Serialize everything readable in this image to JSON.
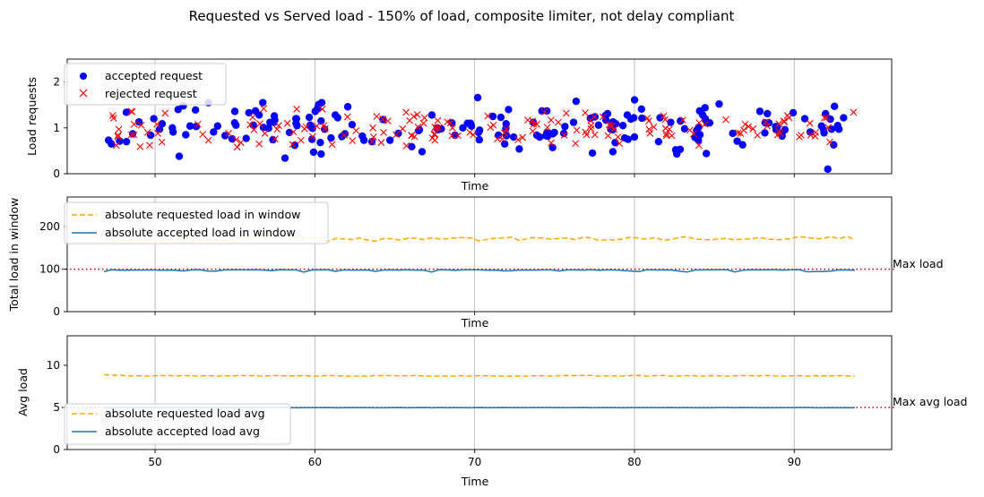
{
  "figure": {
    "title": "Requested vs Served load - 150% of load, composite limiter, not delay compliant"
  },
  "chart_data": [
    {
      "type": "scatter",
      "xlabel": "Time",
      "ylabel": "Load requests",
      "xlim": [
        44.5,
        96.1
      ],
      "ylim": [
        0,
        2.5
      ],
      "yticks": [
        "0",
        "1",
        "2"
      ],
      "xticks": [
        50,
        60,
        70,
        80,
        90
      ],
      "xticklabels_visible": false,
      "grid": "x",
      "legend": "upper-left",
      "series": [
        {
          "name": "accepted request",
          "marker": "circle",
          "color": "#0000ff",
          "points": [],
          "summary": {
            "x_range": [
              47.0,
              93.6
            ],
            "y_range": [
              0.1,
              1.78
            ]
          }
        },
        {
          "name": "rejected request",
          "marker": "x",
          "color": "#ff0000",
          "points": [],
          "summary": {
            "x_range": [
              47.0,
              93.9
            ],
            "y_range": [
              0.5,
              1.67
            ]
          }
        }
      ]
    },
    {
      "type": "line",
      "xlabel": "Time",
      "ylabel": "Total load in window",
      "xlim": [
        44.5,
        96.1
      ],
      "ylim": [
        0,
        270
      ],
      "yticks": [
        "0",
        "100",
        "200"
      ],
      "xticks": [
        50,
        60,
        70,
        80,
        90
      ],
      "xticklabels_visible": false,
      "grid": "x",
      "legend": "upper-left",
      "hline": {
        "y": 100,
        "color": "#cc0000",
        "style": "dotted",
        "label": "Max load"
      },
      "series": [
        {
          "name": "absolute requested load in window",
          "color": "#ffa500",
          "style": "dashed",
          "points": []
        },
        {
          "name": "absolute accepted load in window",
          "color": "#1f77b4",
          "style": "solid",
          "points": []
        }
      ]
    },
    {
      "type": "line",
      "xlabel": "Time",
      "ylabel": "Avg load",
      "xlim": [
        44.5,
        96.1
      ],
      "ylim": [
        0,
        13.5
      ],
      "yticks": [
        "0",
        "5",
        "10"
      ],
      "xticks": [
        50,
        60,
        70,
        80,
        90
      ],
      "xticklabels": [
        "50",
        "60",
        "70",
        "80",
        "90"
      ],
      "grid": "x",
      "legend": "lower-left",
      "hline": {
        "y": 5,
        "color": "#cc0000",
        "style": "dotted",
        "label": "Max avg load"
      },
      "series": [
        {
          "name": "absolute requested load avg",
          "color": "#ffa500",
          "style": "dashed",
          "points": []
        },
        {
          "name": "absolute accepted load avg",
          "color": "#1f77b4",
          "style": "solid",
          "points": []
        }
      ]
    }
  ]
}
